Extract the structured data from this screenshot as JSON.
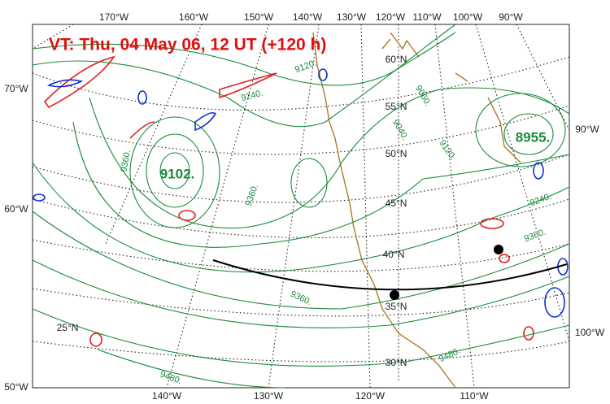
{
  "title": "VT:  Thu, 04 May 06, 12 UT (+120 h)",
  "top_labels": [
    "170°W",
    "160°W",
    "150°W",
    "140°W",
    "130°W",
    "120°W",
    "110°W",
    "100°W",
    "90°W"
  ],
  "bottom_labels": [
    "140°W",
    "130°W",
    "120°W",
    "110°W"
  ],
  "left_labels": [
    "70°W",
    "60°W",
    "50°W"
  ],
  "right_labels": [
    "90°W",
    "100°W"
  ],
  "lat_labels": [
    "60°N",
    "55°N",
    "50°N",
    "45°N",
    "40°N",
    "35°N",
    "30°N",
    "25°N"
  ],
  "contour_labels": [
    "9120.",
    "9060.",
    "9240.",
    "9040.",
    "9120.",
    "9360.",
    "9240.",
    "9360.",
    "9360.",
    "9360.",
    "9480.",
    "9480."
  ],
  "centers": [
    "9102.",
    "8955."
  ]
}
